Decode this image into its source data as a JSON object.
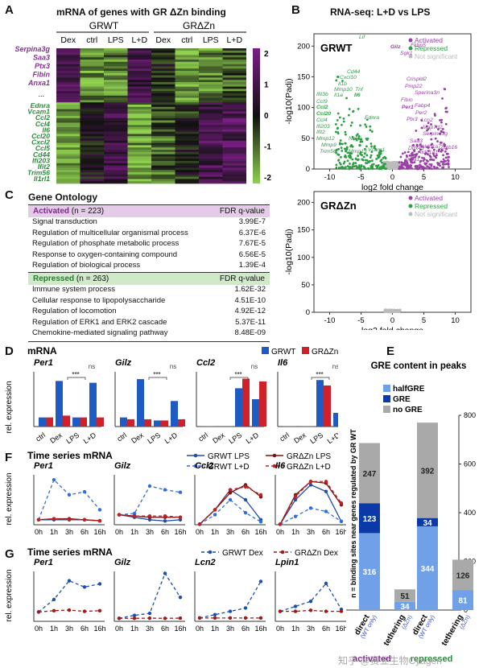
{
  "panels": {
    "A": {
      "letter": "A",
      "title": "mRNA of genes with GR ΔZn binding"
    },
    "B": {
      "letter": "B",
      "title": "RNA-seq: L+D vs LPS"
    },
    "C": {
      "letter": "C"
    },
    "D": {
      "letter": "D"
    },
    "E": {
      "letter": "E"
    },
    "F": {
      "letter": "F"
    },
    "G": {
      "letter": "G"
    }
  },
  "heatmap": {
    "groups": [
      "GRWT",
      "GRΔZn"
    ],
    "columns": [
      "Dex",
      "ctrl",
      "LPS",
      "L+D",
      "Dex",
      "ctrl",
      "LPS",
      "L+D"
    ],
    "activated_genes": [
      "Serpina3g",
      "Saa3",
      "Ptx3",
      "Fibin",
      "Anxa1"
    ],
    "repressed_genes": [
      "Ednra",
      "Vcam1",
      "Ccl2",
      "Ccl4",
      "Il6",
      "Ccl20",
      "Cxcl2",
      "Ccl5",
      "Cd44",
      "Ifi203",
      "Ifit2",
      "Trim56",
      "Il1rl1"
    ],
    "ellipsis": "...",
    "scale": [
      "2",
      "1",
      "0",
      "-1",
      "-2"
    ],
    "colors": {
      "high": "#7b1d86",
      "mid": "#111111",
      "low": "#8fd14f"
    }
  },
  "volcano": {
    "wt_label": "GRWT",
    "dzn_label": "GRΔZn",
    "xlabel": "log2 fold change",
    "ylabel": "-log10(Padj)",
    "legend": [
      "Activated",
      "Repressed",
      "Not significant"
    ],
    "colors": {
      "activated": "#9b3fa8",
      "repressed": "#2e9e44",
      "ns": "#bbbbbb"
    },
    "wt_labels_act": [
      "Gilz",
      "Fkbp5",
      "Sgk1",
      "Crispld2",
      "Pmp22",
      "Sperina3n",
      "Fibin",
      "Per1",
      "Fabp4",
      "Per2",
      "Ptx3",
      "Lcn2",
      "Map7d2",
      "Serpina3g",
      "Saa3",
      "Ddx43",
      "Aldh1a7",
      "Aldh1a1",
      "Zbtb16",
      "Anxa1",
      "Cp"
    ],
    "wt_labels_rep": [
      "Lif",
      "Cd44",
      "Cxcl10",
      "Il1b",
      "Mmp10",
      "Tnf",
      "Ifit3b",
      "Il1a",
      "Il6",
      "Ccl9",
      "Ccl2",
      "Ccl20",
      "Ccl4",
      "Ifi203",
      "Ifit2",
      "Mmp12",
      "Nos2",
      "Mmp9",
      "Trim56",
      "Mmp13",
      "Vcam1",
      "Ednra"
    ]
  },
  "gene_ontology": {
    "title": "Gene Ontology",
    "fdr_header": "FDR q-value",
    "activated": {
      "label": "Activated",
      "n": "(n = 223)",
      "rows": [
        {
          "term": "Signal transduction",
          "q": "3.99E-7"
        },
        {
          "term": "Regulation of multicellular organismal process",
          "q": "6.37E-6"
        },
        {
          "term": "Regulation of phosphate metabolic process",
          "q": "7.67E-5"
        },
        {
          "term": "Response to oxygen-containing compound",
          "q": "6.56E-5"
        },
        {
          "term": "Regulation of biological process",
          "q": "1.39E-4"
        }
      ]
    },
    "repressed": {
      "label": "Repressed",
      "n": "(n = 263)",
      "rows": [
        {
          "term": "Immune system process",
          "q": "1.62E-32"
        },
        {
          "term": "Cellular response to lipopolysaccharide",
          "q": "4.51E-10"
        },
        {
          "term": "Regulation of locomotion",
          "q": "4.92E-12"
        },
        {
          "term": "Regulation of ERK1 and ERK2 cascade",
          "q": "5.37E-11"
        },
        {
          "term": "Chemokine-mediated signaling pathway",
          "q": "8.48E-09"
        }
      ]
    }
  },
  "chart_data": [
    {
      "id": "D",
      "type": "bar",
      "title": "mRNA",
      "ylabel": "rel. expression",
      "categories": [
        "ctrl",
        "Dex",
        "LPS",
        "L+D"
      ],
      "series": [
        {
          "name": "GRWT",
          "color": "#1f5bc4"
        },
        {
          "name": "GRΔZn",
          "color": "#d0212a"
        }
      ],
      "genes": [
        {
          "name": "Per1",
          "WT": [
            0.05,
            0.25,
            0.05,
            0.24
          ],
          "DZn": [
            0.05,
            0.06,
            0.05,
            0.05
          ],
          "ymax": 0.3,
          "sig": [
            "***",
            "ns"
          ]
        },
        {
          "name": "Gilz",
          "WT": [
            0.15,
            0.78,
            0.1,
            0.42
          ],
          "DZn": [
            0.12,
            0.12,
            0.1,
            0.12
          ],
          "ymax": 0.9,
          "sig": [
            "***",
            "ns"
          ]
        },
        {
          "name": "Ccl2",
          "WT": [
            0.2,
            0.1,
            28,
            20
          ],
          "DZn": [
            0.2,
            0.1,
            35,
            33
          ],
          "ymax": 40,
          "sig": [
            "***",
            "ns"
          ]
        },
        {
          "name": "Il6",
          "WT": [
            0.1,
            0.1,
            17,
            5
          ],
          "DZn": [
            0.1,
            0.1,
            15,
            17
          ],
          "ymax": 20,
          "sig": [
            "***",
            "ns"
          ]
        }
      ]
    },
    {
      "id": "E",
      "type": "bar",
      "title": "GRE content in peaks",
      "ylabel": "n = binding sites near genes regulated by GR WT",
      "ylim": [
        0,
        800
      ],
      "yticks": [
        "0",
        "200",
        "400",
        "600",
        "800"
      ],
      "categories": [
        "direct",
        "tethering",
        "direct",
        "tethering"
      ],
      "category_sublabels": [
        "(WT only)",
        "(ΔZn)",
        "(WT only)",
        "(ΔZn)"
      ],
      "groups": [
        "activated",
        "repressed"
      ],
      "series": [
        {
          "name": "halfGRE",
          "color": "#6fa0e8",
          "values": [
            316,
            34,
            344,
            81
          ]
        },
        {
          "name": "GRE",
          "color": "#0b3aa8",
          "values": [
            123,
            0,
            34,
            0
          ]
        },
        {
          "name": "no GRE",
          "color": "#a9a9a9",
          "values": [
            247,
            51,
            392,
            126
          ]
        }
      ]
    },
    {
      "id": "F",
      "type": "line",
      "title": "Time series mRNA",
      "ylabel": "rel. expression",
      "x": [
        "0h",
        "1h",
        "3h",
        "6h",
        "16h"
      ],
      "legend": [
        "GRWT LPS",
        "GRWT L+D",
        "GRΔZn LPS",
        "GRΔZn L+D"
      ],
      "genes": [
        {
          "name": "Per1",
          "WT_LPS": [
            0.05,
            0.05,
            0.05,
            0.05,
            0.04
          ],
          "WT_LD": [
            0.05,
            0.45,
            0.3,
            0.33,
            0.15
          ],
          "DZn_LPS": [
            0.05,
            0.06,
            0.06,
            0.05,
            0.04
          ],
          "DZn_LD": [
            0.05,
            0.06,
            0.05,
            0.05,
            0.04
          ],
          "ymax": 0.5
        },
        {
          "name": "Gilz",
          "WT_LPS": [
            0.4,
            0.3,
            0.2,
            0.15,
            0.2
          ],
          "WT_LD": [
            0.4,
            0.45,
            1.55,
            1.4,
            1.3
          ],
          "DZn_LPS": [
            0.4,
            0.35,
            0.3,
            0.3,
            0.3
          ],
          "DZn_LD": [
            0.4,
            0.35,
            0.35,
            0.35,
            0.3
          ],
          "ymax": 2
        },
        {
          "name": "Ccl2",
          "WT_LPS": [
            0.5,
            15,
            35,
            25,
            5
          ],
          "WT_LD": [
            0.5,
            10,
            25,
            12,
            3
          ],
          "DZn_LPS": [
            0.5,
            15,
            32,
            40,
            28
          ],
          "DZn_LD": [
            0.5,
            15,
            35,
            38,
            30
          ],
          "ymax": 50
        },
        {
          "name": "Il6",
          "WT_LPS": [
            0.3,
            15,
            24,
            20,
            2
          ],
          "WT_LD": [
            0.3,
            5,
            10,
            8,
            2
          ],
          "DZn_LPS": [
            0.3,
            18,
            26,
            25,
            12
          ],
          "DZn_LD": [
            0.3,
            17,
            26,
            26,
            13
          ],
          "ymax": 30
        }
      ]
    },
    {
      "id": "G",
      "type": "line",
      "title": "Time series mRNA",
      "ylabel": "rel. expression",
      "x": [
        "0h",
        "1h",
        "3h",
        "6h",
        "16h"
      ],
      "legend": [
        "GRWT Dex",
        "GRΔZn Dex"
      ],
      "genes": [
        {
          "name": "Per1",
          "WT": [
            0.15,
            0.35,
            0.65,
            0.55,
            0.6
          ],
          "DZn": [
            0.15,
            0.17,
            0.18,
            0.16,
            0.17
          ],
          "ymax": 0.8
        },
        {
          "name": "Gilz",
          "WT": [
            0.15,
            0.3,
            0.4,
            2.4,
            1.2
          ],
          "DZn": [
            0.15,
            0.15,
            0.16,
            0.15,
            0.16
          ],
          "ymax": 2.5
        },
        {
          "name": "Lcn2",
          "WT": [
            0.01,
            0.02,
            0.03,
            0.04,
            0.12
          ],
          "DZn": [
            0.01,
            0.01,
            0.01,
            0.01,
            0.01
          ],
          "ymax": 0.15
        },
        {
          "name": "Lpin1",
          "WT": [
            0.1,
            0.15,
            0.2,
            0.38,
            0.12
          ],
          "DZn": [
            0.1,
            0.1,
            0.11,
            0.1,
            0.1
          ],
          "ymax": 0.5
        }
      ]
    }
  ],
  "watermark": "知乎 @赛业生物Cyagen"
}
